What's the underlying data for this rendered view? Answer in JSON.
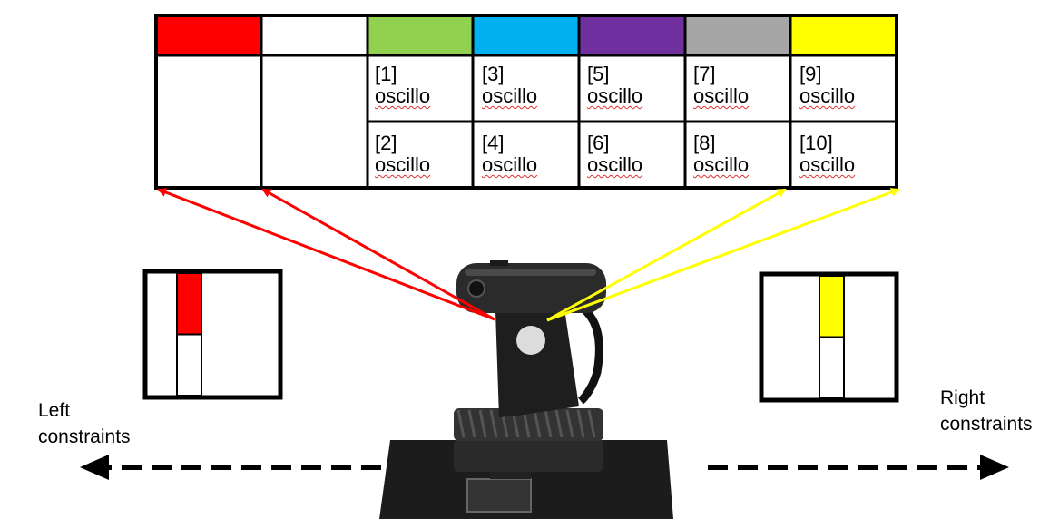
{
  "table": {
    "color_headers": [
      {
        "color": "#ff0000"
      },
      {
        "color": "#ffffff"
      },
      {
        "color": "#92d050"
      },
      {
        "color": "#00b0f0"
      },
      {
        "color": "#7030a0"
      },
      {
        "color": "#a6a6a6"
      },
      {
        "color": "#ffff00"
      }
    ],
    "cells": [
      {
        "id": "[1]",
        "text": "oscillo"
      },
      {
        "id": "[2]",
        "text": "oscillo"
      },
      {
        "id": "[3]",
        "text": "oscillo"
      },
      {
        "id": "[4]",
        "text": "oscillo"
      },
      {
        "id": "[5]",
        "text": "oscillo"
      },
      {
        "id": "[6]",
        "text": "oscillo"
      },
      {
        "id": "[7]",
        "text": "oscillo"
      },
      {
        "id": "[8]",
        "text": "oscillo"
      },
      {
        "id": "[9]",
        "text": "oscillo"
      },
      {
        "id": "[10]",
        "text": "oscillo"
      }
    ]
  },
  "left_indicator": {
    "fill_color": "#ff0000",
    "fill_fraction": 0.5
  },
  "right_indicator": {
    "fill_color": "#ffff00",
    "fill_fraction": 0.5
  },
  "labels": {
    "left_line1": "Left",
    "left_line2": "constraints",
    "right_line1": "Right",
    "right_line2": "constraints"
  },
  "arrow_colors": {
    "left": "#ff0000",
    "right": "#ffff00"
  }
}
